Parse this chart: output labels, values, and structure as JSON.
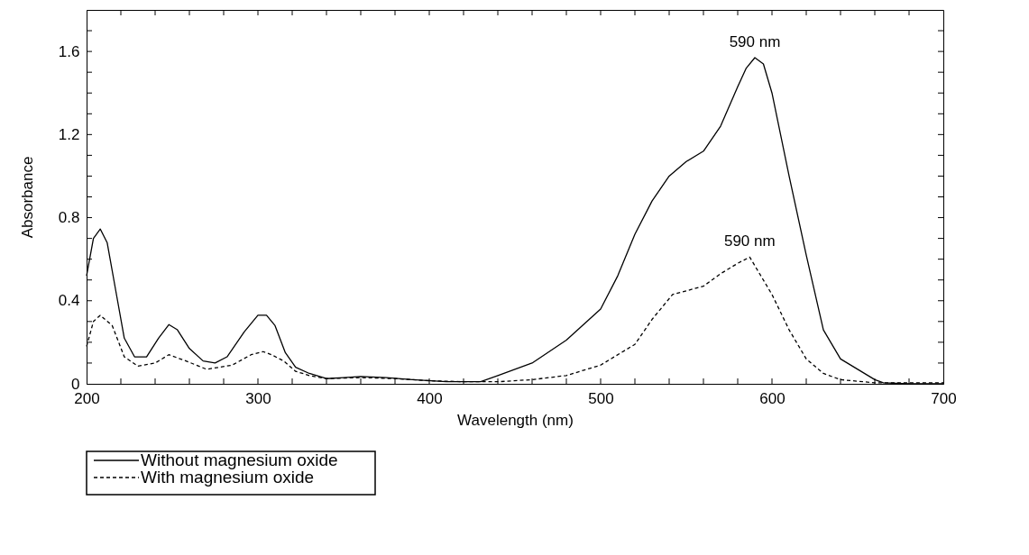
{
  "chart_data": {
    "type": "line",
    "xlabel": "Wavelength (nm)",
    "ylabel": "Absorbance",
    "xlim": [
      200,
      700
    ],
    "ylim": [
      0,
      1.8
    ],
    "xticks": [
      200,
      {
        "value": 220,
        "label": null
      },
      {
        "value": 240,
        "label": null
      },
      {
        "value": 260,
        "label": null
      },
      {
        "value": 280,
        "label": null
      },
      300,
      {
        "value": 320,
        "label": null
      },
      {
        "value": 340,
        "label": null
      },
      {
        "value": 360,
        "label": null
      },
      {
        "value": 380,
        "label": null
      },
      400,
      {
        "value": 420,
        "label": null
      },
      {
        "value": 440,
        "label": null
      },
      {
        "value": 460,
        "label": null
      },
      {
        "value": 480,
        "label": null
      },
      500,
      {
        "value": 520,
        "label": null
      },
      {
        "value": 540,
        "label": null
      },
      {
        "value": 560,
        "label": null
      },
      {
        "value": 580,
        "label": null
      },
      600,
      {
        "value": 620,
        "label": null
      },
      {
        "value": 640,
        "label": null
      },
      {
        "value": 660,
        "label": null
      },
      {
        "value": 680,
        "label": null
      },
      700
    ],
    "yticks": [
      0,
      {
        "value": 0.1,
        "label": null
      },
      {
        "value": 0.2,
        "label": null
      },
      {
        "value": 0.3,
        "label": null
      },
      0.4,
      {
        "value": 0.5,
        "label": null
      },
      {
        "value": 0.6,
        "label": null
      },
      {
        "value": 0.7,
        "label": null
      },
      0.8,
      {
        "value": 0.9,
        "label": null
      },
      {
        "value": 1.0,
        "label": null
      },
      {
        "value": 1.1,
        "label": null
      },
      1.2,
      {
        "value": 1.3,
        "label": null
      },
      {
        "value": 1.4,
        "label": null
      },
      {
        "value": 1.5,
        "label": null
      },
      1.6,
      {
        "value": 1.7,
        "label": null
      },
      {
        "value": 1.8,
        "label": null
      }
    ],
    "grid": false,
    "legend": "bottom left",
    "marker": "none",
    "annotations": [
      {
        "text": "590 nm",
        "x": 590,
        "y": 1.57
      },
      {
        "text": "590 nm",
        "x": 587,
        "y": 0.61
      }
    ],
    "series": [
      {
        "name": "Without magnesium oxide",
        "color": "#000000",
        "line_style": "solid",
        "x": [
          200,
          204,
          208,
          212,
          217,
          222,
          228,
          235,
          242,
          248,
          253,
          260,
          268,
          275,
          282,
          292,
          300,
          305,
          310,
          316,
          322,
          330,
          340,
          350,
          360,
          375,
          390,
          410,
          430,
          440,
          460,
          480,
          500,
          510,
          520,
          530,
          540,
          550,
          560,
          570,
          580,
          585,
          590,
          595,
          600,
          610,
          620,
          630,
          640,
          650,
          660,
          665,
          680,
          700
        ],
        "values": [
          0.52,
          0.7,
          0.745,
          0.68,
          0.45,
          0.22,
          0.13,
          0.13,
          0.22,
          0.285,
          0.26,
          0.17,
          0.11,
          0.1,
          0.13,
          0.25,
          0.33,
          0.33,
          0.28,
          0.15,
          0.08,
          0.05,
          0.025,
          0.03,
          0.035,
          0.03,
          0.02,
          0.01,
          0.01,
          0.04,
          0.1,
          0.21,
          0.36,
          0.52,
          0.72,
          0.88,
          1.0,
          1.07,
          1.12,
          1.24,
          1.43,
          1.52,
          1.57,
          1.54,
          1.4,
          1.0,
          0.62,
          0.26,
          0.12,
          0.07,
          0.02,
          0.005,
          0.0,
          0.0
        ]
      },
      {
        "name": "With magnesium oxide",
        "color": "#000000",
        "line_style": "dashed",
        "x": [
          200,
          204,
          208,
          215,
          222,
          230,
          240,
          248,
          258,
          270,
          285,
          296,
          303,
          308,
          315,
          322,
          330,
          340,
          360,
          380,
          400,
          420,
          440,
          460,
          480,
          500,
          520,
          530,
          542,
          560,
          570,
          580,
          587,
          600,
          610,
          620,
          630,
          640,
          660,
          680,
          700
        ],
        "values": [
          0.18,
          0.3,
          0.33,
          0.28,
          0.13,
          0.085,
          0.1,
          0.14,
          0.11,
          0.07,
          0.09,
          0.14,
          0.155,
          0.14,
          0.11,
          0.06,
          0.04,
          0.025,
          0.03,
          0.025,
          0.015,
          0.01,
          0.01,
          0.02,
          0.04,
          0.09,
          0.19,
          0.31,
          0.43,
          0.47,
          0.53,
          0.58,
          0.61,
          0.43,
          0.26,
          0.12,
          0.05,
          0.02,
          0.005,
          0.005,
          0.005
        ]
      }
    ]
  }
}
